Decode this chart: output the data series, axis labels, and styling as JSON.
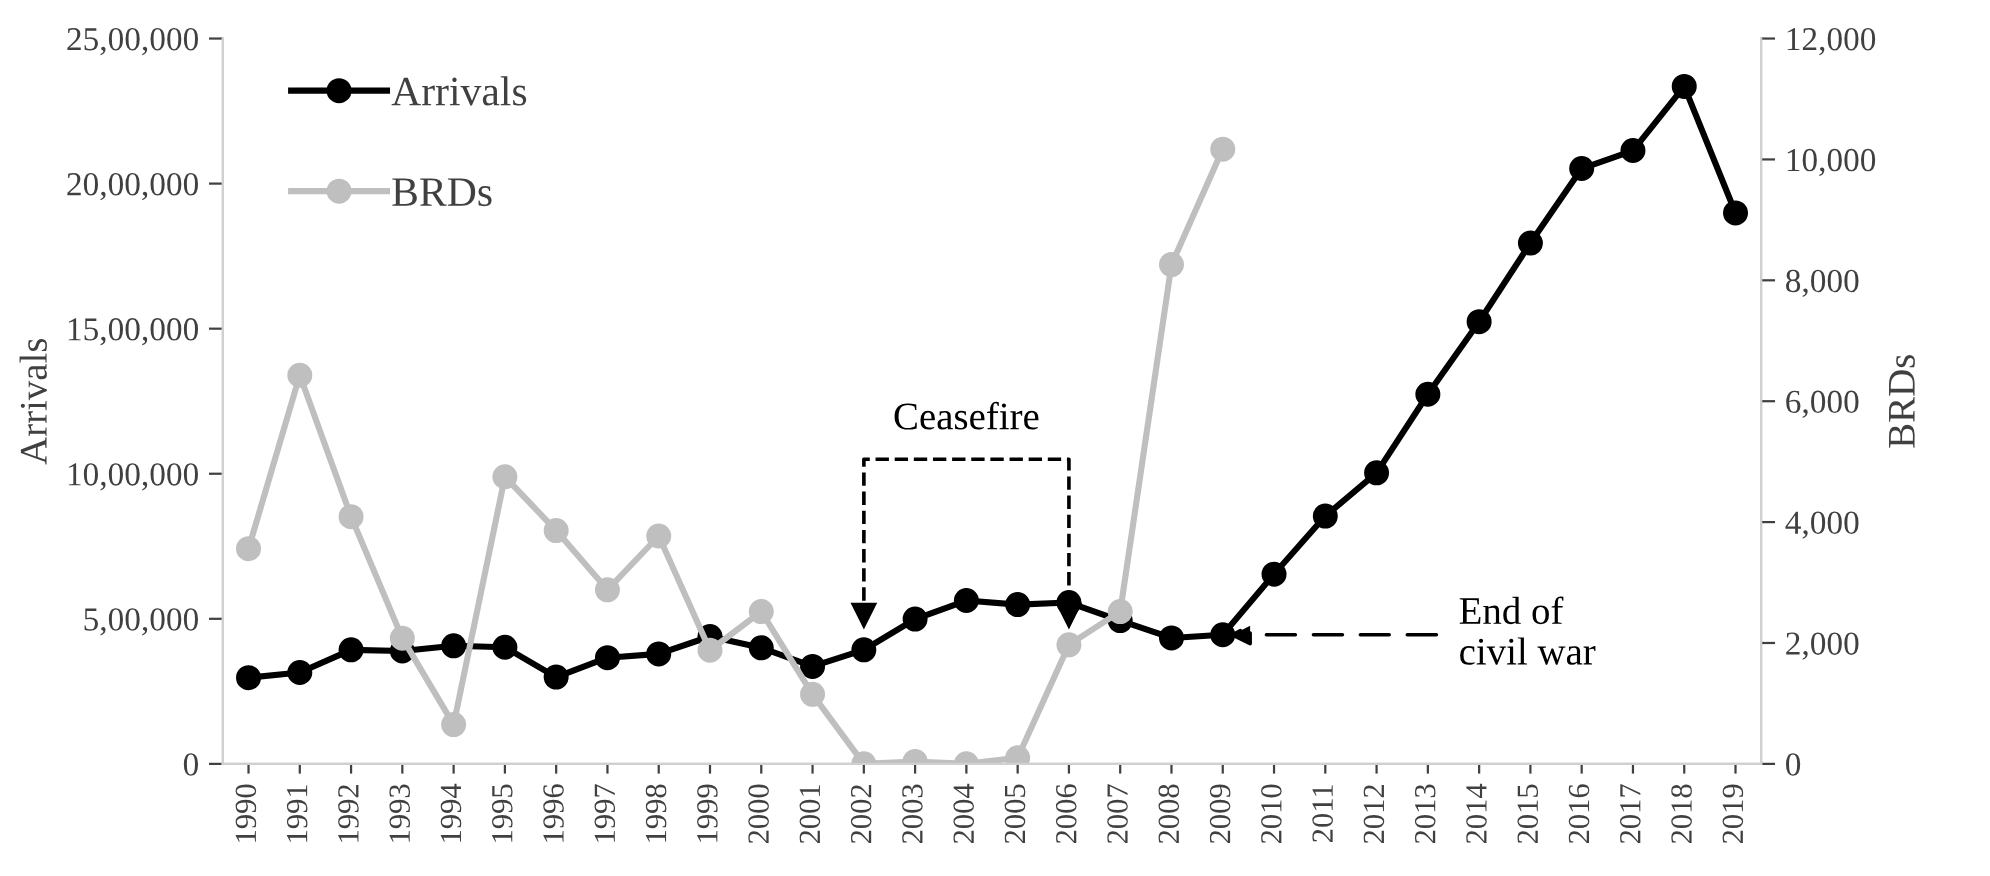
{
  "chart_data": {
    "type": "line",
    "categories": [
      "1990",
      "1991",
      "1992",
      "1993",
      "1994",
      "1995",
      "1996",
      "1997",
      "1998",
      "1999",
      "2000",
      "2001",
      "2002",
      "2003",
      "2004",
      "2005",
      "2006",
      "2007",
      "2008",
      "2009",
      "2010",
      "2011",
      "2012",
      "2013",
      "2014",
      "2015",
      "2016",
      "2017",
      "2018",
      "2019"
    ],
    "series": [
      {
        "name": "Arrivals",
        "color": "#000000",
        "values": [
          297000,
          315000,
          393000,
          389000,
          407000,
          402000,
          299000,
          366000,
          379000,
          439000,
          400000,
          336000,
          393000,
          499000,
          563000,
          549000,
          556000,
          494000,
          434000,
          445000,
          654000,
          854000,
          1003000,
          1274000,
          1524000,
          1795000,
          2052000,
          2114000,
          2335000,
          1899000
        ]
      },
      {
        "name": "BRDs",
        "color": "#bfbfbf",
        "axis": "y2",
        "values": [
          3560,
          6430,
          4090,
          2080,
          650,
          4750,
          3860,
          2880,
          3770,
          1880,
          2520,
          1150,
          0,
          40,
          0,
          100,
          1970,
          2520,
          8260,
          10170,
          null,
          null,
          null,
          null,
          null,
          null,
          null,
          null,
          null,
          null
        ]
      }
    ],
    "ylabel": "Arrivals",
    "y2label": "BRDs",
    "ylim": [
      0,
      2500000
    ],
    "yticks": [
      {
        "value": 0,
        "label": "0"
      },
      {
        "value": 500000,
        "label": "5,00,000"
      },
      {
        "value": 1000000,
        "label": "10,00,000"
      },
      {
        "value": 1500000,
        "label": "15,00,000"
      },
      {
        "value": 2000000,
        "label": "20,00,000"
      },
      {
        "value": 2500000,
        "label": "25,00,000"
      }
    ],
    "y2lim": [
      0,
      12000
    ],
    "y2ticks": [
      0,
      {
        "value": 2000,
        "label": "2,000"
      },
      {
        "value": 4000,
        "label": "4,000"
      },
      {
        "value": 6000,
        "label": "6,000"
      },
      {
        "value": 8000,
        "label": "8,000"
      },
      {
        "value": 10000,
        "label": "10,000"
      },
      {
        "value": 12000,
        "label": "12,000"
      }
    ],
    "annotations": [
      "Ceasefire",
      {
        "text": "End of\ncivil war",
        "x": "2009",
        "y": 445000
      }
    ],
    "legend": "top left",
    "grid": false,
    "marker": "circle",
    "line_style": "solid"
  }
}
